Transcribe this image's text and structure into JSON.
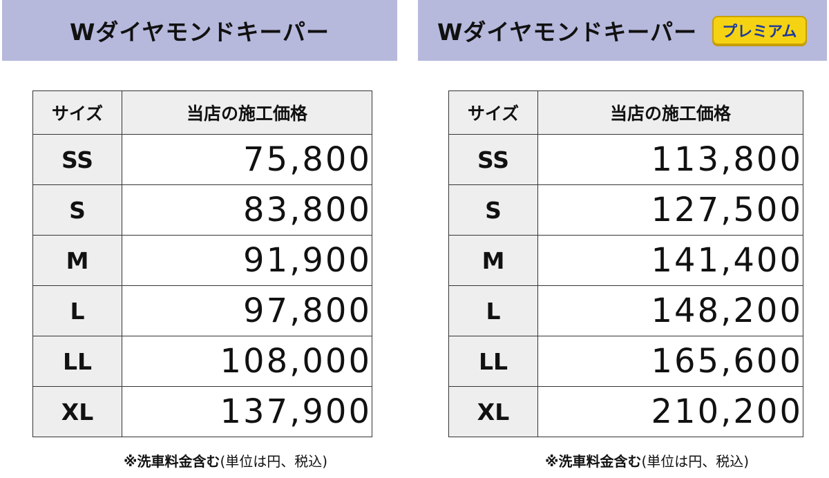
{
  "left": {
    "title": "Wダイヤモンドキーパー",
    "columns": [
      "サイズ",
      "当店の施工価格"
    ],
    "rows": [
      {
        "size": "SS",
        "price": "75,800"
      },
      {
        "size": "S",
        "price": "83,800"
      },
      {
        "size": "M",
        "price": "91,900"
      },
      {
        "size": "L",
        "price": "97,800"
      },
      {
        "size": "LL",
        "price": "108,000"
      },
      {
        "size": "XL",
        "price": "137,900"
      }
    ],
    "note_bold": "※洗車料金含む",
    "note_rest": "(単位は円、税込)"
  },
  "right": {
    "title": "Wダイヤモンドキーパー",
    "badge": "プレミアム",
    "columns": [
      "サイズ",
      "当店の施工価格"
    ],
    "rows": [
      {
        "size": "SS",
        "price": "113,800"
      },
      {
        "size": "S",
        "price": "127,500"
      },
      {
        "size": "M",
        "price": "141,400"
      },
      {
        "size": "L",
        "price": "148,200"
      },
      {
        "size": "LL",
        "price": "165,600"
      },
      {
        "size": "XL",
        "price": "210,200"
      }
    ],
    "note_bold": "※洗車料金含む",
    "note_rest": "(単位は円、税込)"
  },
  "colors": {
    "header_bg": "#b6b8dc",
    "badge_bg": "#f5d313",
    "badge_text": "#1e3a9a",
    "cell_gray": "#eeeeee"
  }
}
